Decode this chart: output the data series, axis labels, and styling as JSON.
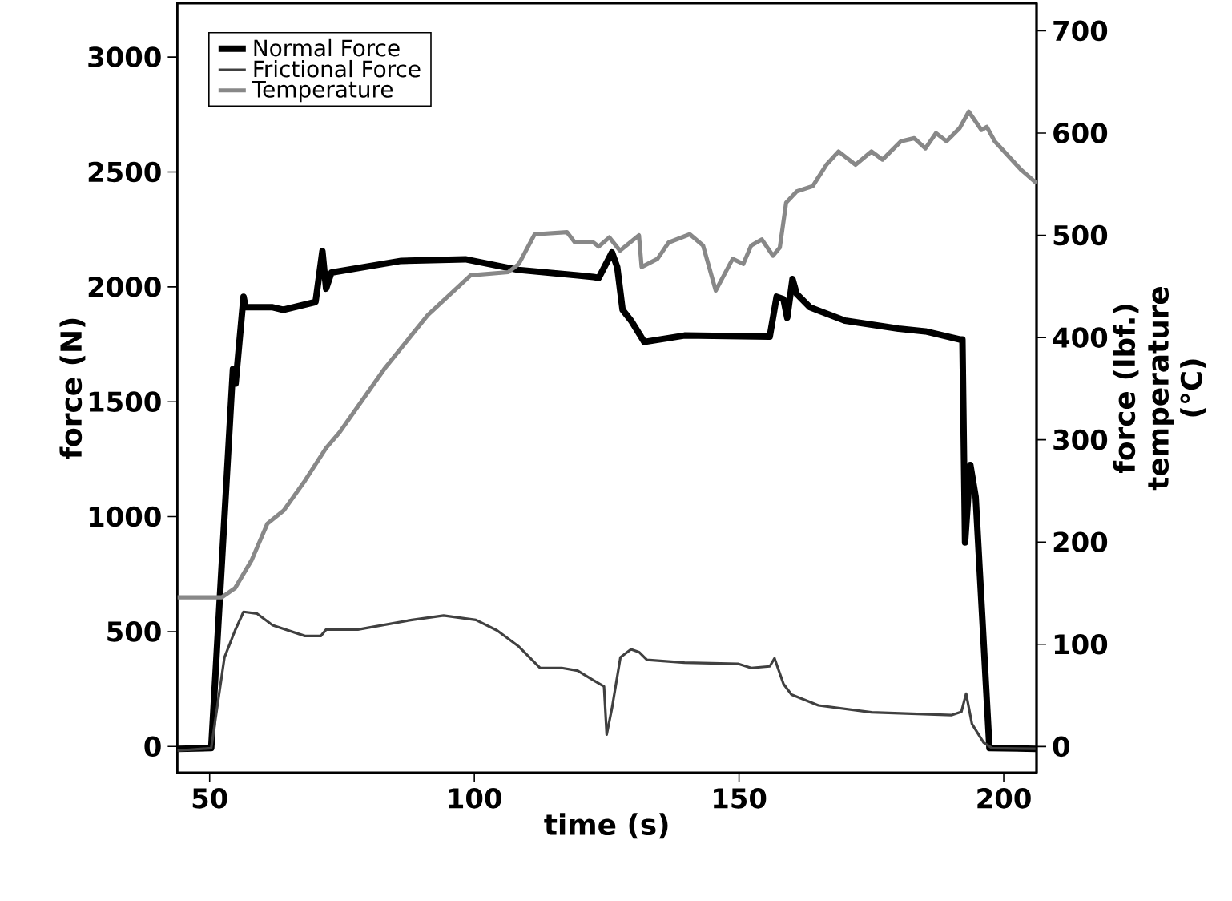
{
  "chart_data": {
    "type": "line",
    "xlabel": "time (s)",
    "ylabel": "force (N)",
    "y2label": "force (lbf.) temperature (°C)",
    "xlim": [
      43.9,
      206.2
    ],
    "ylim": [
      -114,
      3234
    ],
    "y2lim": [
      -25.6,
      727
    ],
    "xticks": [
      50,
      100,
      150,
      200
    ],
    "yticks": [
      0,
      500,
      1000,
      1500,
      2000,
      2500,
      3000
    ],
    "y2ticks": [
      0,
      100,
      200,
      300,
      400,
      500,
      600,
      700
    ],
    "legend": "top left",
    "grid": false,
    "series": [
      {
        "name": "Normal Force",
        "color": "#000000",
        "x": [
          43.9,
          50.3,
          54.4,
          54.9,
          56.4,
          56.8,
          61.9,
          63.9,
          70,
          71.3,
          72,
          73,
          86.2,
          98.3,
          108.3,
          119.5,
          122.5,
          123.5,
          126,
          127,
          128,
          129.6,
          132.1,
          139.7,
          155.8,
          157.1,
          158.4,
          159.1,
          160.1,
          160.9,
          163.4,
          170,
          180.1,
          185.2,
          191.7,
          192.2,
          192.7,
          193.7,
          194.7,
          197.3,
          206.2
        ],
        "values": [
          -10,
          -7,
          1642,
          1579,
          1957,
          1911,
          1911,
          1900,
          1934,
          2155,
          1992,
          2062,
          2113,
          2120,
          2074,
          2050,
          2043,
          2039,
          2150,
          2085,
          1900,
          1853,
          1760,
          1788,
          1783,
          1957,
          1946,
          1865,
          2034,
          1969,
          1911,
          1853,
          1818,
          1806,
          1771,
          1771,
          888,
          1225,
          1086,
          -7,
          -10
        ]
      },
      {
        "name": "Frictional Force",
        "color": "#404040",
        "x": [
          43.9,
          50.3,
          52.8,
          54.8,
          56.4,
          58.9,
          61.9,
          68,
          71,
          72,
          78,
          88.2,
          94.2,
          100.3,
          104.3,
          108.4,
          112.4,
          116.5,
          119.5,
          122.3,
          124.5,
          125,
          126,
          127.6,
          129.6,
          131.1,
          132.6,
          139.7,
          149.8,
          152.3,
          155.8,
          156.7,
          158.4,
          159.9,
          165,
          175,
          190.2,
          192,
          192.9,
          194,
          196.2,
          197.8,
          206.2
        ],
        "values": [
          -18,
          -7,
          388,
          505,
          586,
          579,
          528,
          481,
          481,
          509,
          509,
          551,
          570,
          551,
          505,
          435,
          342,
          342,
          330,
          291,
          261,
          52,
          167,
          388,
          423,
          411,
          377,
          365,
          360,
          342,
          349,
          384,
          272,
          226,
          179,
          149,
          137,
          151,
          230,
          98,
          17,
          -7,
          -10
        ]
      },
      {
        "name": "Temperature",
        "color": "#888888",
        "axis": "y2",
        "x": [
          43.9,
          52.3,
          54.8,
          57.9,
          60.9,
          64,
          68,
          72,
          74.5,
          83.1,
          91.2,
          99.3,
          106.4,
          108.4,
          111.4,
          117.5,
          119,
          122.5,
          123.5,
          125.5,
          127.5,
          131.1,
          131.6,
          134.6,
          136.7,
          140.7,
          143.2,
          145.6,
          148.8,
          150.8,
          152.3,
          154.3,
          156.4,
          157.7,
          158.9,
          160.9,
          163.9,
          166.5,
          168.8,
          172,
          175,
          177.1,
          180.6,
          183.1,
          185.2,
          187.2,
          189.2,
          191.7,
          193.4,
          195.8,
          196.8,
          198.3,
          203.3,
          206.2
        ],
        "values": [
          146,
          146,
          155,
          182,
          218,
          231,
          260,
          292,
          307,
          370,
          422,
          461,
          464,
          472,
          501,
          503,
          493,
          493,
          489,
          498,
          485,
          500,
          469,
          477,
          493,
          501,
          490,
          446,
          477,
          472,
          490,
          496,
          480,
          488,
          532,
          543,
          548,
          569,
          582,
          569,
          582,
          574,
          592,
          595,
          585,
          600,
          592,
          605,
          621,
          603,
          606,
          592,
          564,
          551
        ]
      }
    ]
  }
}
